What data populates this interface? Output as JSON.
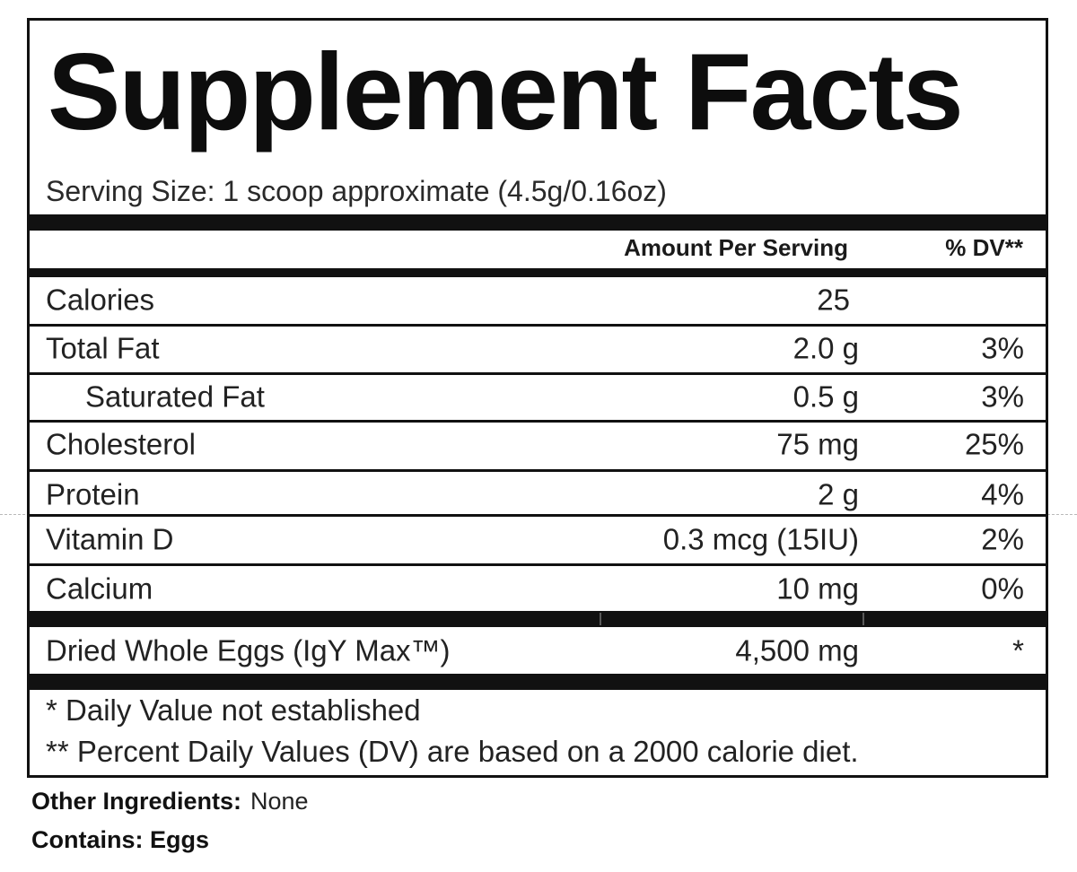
{
  "label": {
    "title": "Supplement Facts",
    "serving_size": "Serving Size: 1 scoop approximate (4.5g/0.16oz)",
    "header": {
      "amount": "Amount Per Serving",
      "dv": "% DV**"
    },
    "rows": [
      {
        "name": "Calories",
        "amount": "25",
        "dv": ""
      },
      {
        "name": "Total Fat",
        "amount": "2.0 g",
        "dv": "3%"
      },
      {
        "name": "Saturated Fat",
        "amount": "0.5 g",
        "dv": "3%"
      },
      {
        "name": "Cholesterol",
        "amount": "75 mg",
        "dv": "25%"
      },
      {
        "name": "Protein",
        "amount": "2 g",
        "dv": "4%"
      },
      {
        "name": "Vitamin D",
        "amount": "0.3 mcg (15IU)",
        "dv": "2%"
      },
      {
        "name": "Calcium",
        "amount": "10 mg",
        "dv": "0%"
      }
    ],
    "blend": {
      "name": "Dried Whole Eggs (IgY Max™)",
      "amount": "4,500 mg",
      "dv": "*"
    },
    "footnotes": [
      "* Daily Value not established",
      "** Percent Daily Values (DV) are based on a 2000 calorie diet."
    ]
  },
  "other_ingredients": {
    "label": "Other Ingredients:",
    "value": "None"
  },
  "contains": {
    "label": "Contains: Eggs"
  }
}
